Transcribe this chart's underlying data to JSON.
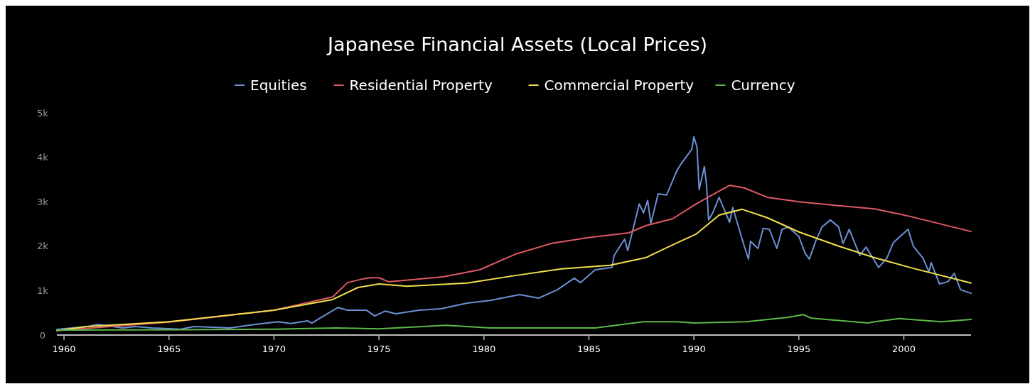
{
  "chart_data": {
    "type": "line",
    "title": "Japanese Financial Assets (Local Prices)",
    "legend": "top",
    "grid": false,
    "xlim": [
      1959.66,
      2003.2
    ],
    "ylim": [
      0,
      5000
    ],
    "xticks": [
      {
        "value": 1960,
        "label": "1960"
      },
      {
        "value": 1965,
        "label": "1965"
      },
      {
        "value": 1970,
        "label": "1970"
      },
      {
        "value": 1975,
        "label": "1975"
      },
      {
        "value": 1980,
        "label": "1980"
      },
      {
        "value": 1985,
        "label": "1985"
      },
      {
        "value": 1990,
        "label": "1990"
      },
      {
        "value": 1995,
        "label": "1995"
      },
      {
        "value": 2000,
        "label": "2000"
      }
    ],
    "yticks": [
      {
        "value": 0,
        "label": "0"
      },
      {
        "value": 1000,
        "label": "1k"
      },
      {
        "value": 2000,
        "label": "2k"
      },
      {
        "value": 3000,
        "label": "3k"
      },
      {
        "value": 4000,
        "label": "4k"
      },
      {
        "value": 5000,
        "label": "5k"
      }
    ],
    "series": [
      {
        "name": "Equities",
        "color": "#6d8fd6",
        "x": [
          1959.66,
          1961.1,
          1961.6,
          1962.8,
          1963.4,
          1964.2,
          1965.55,
          1966.2,
          1967.9,
          1969.1,
          1970.2,
          1970.8,
          1971.6,
          1971.8,
          1973.05,
          1973.5,
          1974.4,
          1974.8,
          1975.3,
          1975.8,
          1976.9,
          1977.95,
          1979.2,
          1980.3,
          1981.7,
          1982.6,
          1983.5,
          1984.3,
          1984.6,
          1985.3,
          1986.1,
          1986.2,
          1986.7,
          1986.85,
          1987.4,
          1987.6,
          1987.8,
          1987.95,
          1988.3,
          1988.7,
          1989.2,
          1989.4,
          1989.9,
          1990.0,
          1990.15,
          1990.25,
          1990.5,
          1990.6,
          1990.7,
          1990.9,
          1991.2,
          1991.7,
          1991.85,
          1992.4,
          1992.6,
          1992.7,
          1993.05,
          1993.3,
          1993.6,
          1993.95,
          1994.2,
          1994.5,
          1995.0,
          1995.3,
          1995.5,
          1995.8,
          1996.1,
          1996.5,
          1996.9,
          1997.1,
          1997.4,
          1997.9,
          1998.2,
          1998.8,
          1999.2,
          1999.5,
          2000.2,
          2000.45,
          2000.9,
          2001.2,
          2001.3,
          2001.7,
          2002.1,
          2002.4,
          2002.7,
          2003.2
        ],
        "values": [
          128,
          190,
          240,
          160,
          190,
          160,
          130,
          190,
          160,
          240,
          300,
          260,
          320,
          270,
          620,
          560,
          560,
          430,
          540,
          480,
          560,
          590,
          720,
          780,
          910,
          830,
          1020,
          1280,
          1180,
          1470,
          1520,
          1790,
          2160,
          1900,
          2950,
          2750,
          3030,
          2510,
          3180,
          3150,
          3710,
          3860,
          4180,
          4460,
          4230,
          3270,
          3790,
          3390,
          2590,
          2750,
          3100,
          2540,
          2870,
          2000,
          1710,
          2110,
          1950,
          2400,
          2380,
          1950,
          2380,
          2430,
          2220,
          1840,
          1710,
          2110,
          2430,
          2590,
          2430,
          2060,
          2380,
          1790,
          1980,
          1520,
          1740,
          2080,
          2380,
          2000,
          1740,
          1420,
          1630,
          1150,
          1200,
          1390,
          1020,
          940
        ]
      },
      {
        "name": "Residential Property",
        "color": "#e05a63",
        "x": [
          1959.66,
          1965,
          1970,
          1972.8,
          1973.5,
          1974.2,
          1974.6,
          1975.0,
          1975.45,
          1978.05,
          1979.8,
          1981.5,
          1983.2,
          1984.9,
          1986.9,
          1987.7,
          1989.0,
          1990.1,
          1991.7,
          1992.4,
          1993.5,
          1995.0,
          1996.9,
          1998.6,
          2000.3,
          2003.2
        ],
        "values": [
          100,
          290,
          560,
          860,
          1180,
          1260,
          1290,
          1290,
          1200,
          1310,
          1470,
          1820,
          2060,
          2190,
          2300,
          2460,
          2620,
          2950,
          3370,
          3310,
          3100,
          3000,
          2910,
          2840,
          2670,
          2330
        ]
      },
      {
        "name": "Commercial Property",
        "color": "#f0e04a",
        "x": [
          1959.66,
          1961.1,
          1965,
          1970,
          1972.8,
          1974,
          1975.0,
          1976.35,
          1979.2,
          1981.5,
          1983.7,
          1986.0,
          1987.7,
          1988.85,
          1990.1,
          1991.2,
          1992.3,
          1993.5,
          1995.0,
          1996.9,
          1998.6,
          2000.3,
          2003.2
        ],
        "values": [
          100,
          190,
          300,
          560,
          800,
          1070,
          1150,
          1100,
          1170,
          1340,
          1490,
          1570,
          1740,
          2000,
          2270,
          2700,
          2830,
          2640,
          2320,
          2000,
          1740,
          1520,
          1170
        ]
      },
      {
        "name": "Currency",
        "color": "#5db84a",
        "x": [
          1959.66,
          1970,
          1973,
          1975,
          1978.2,
          1980.3,
          1982.6,
          1985.3,
          1987.6,
          1989.2,
          1990,
          1992.5,
          1994.5,
          1995.2,
          1995.6,
          1998.3,
          1998.6,
          1999.8,
          2001.8,
          2003.2
        ],
        "values": [
          110,
          130,
          160,
          140,
          220,
          160,
          160,
          160,
          300,
          300,
          270,
          300,
          400,
          460,
          380,
          270,
          300,
          370,
          300,
          350
        ]
      }
    ]
  }
}
